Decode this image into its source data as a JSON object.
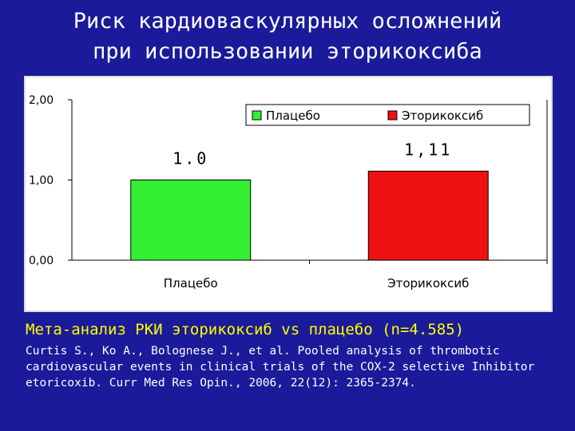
{
  "slide": {
    "title_line1": "Риск кардиоваскулярных осложнений",
    "title_line2": "при использовании эторикоксиба",
    "meta_analysis": "Мета-анализ РКИ эторикоксиб  vs плацебо (n=4.585)",
    "citation_line1": "Curtis S., Ko A., Bolognese J., et al. Pooled analysis of thrombotic",
    "citation_line2": "cardiovascular events in clinical trials of the COX-2 selective Inhibitor",
    "citation_line3": "etoricoxib. Curr Med Res Opin., 2006, 22(12): 2365-2374."
  },
  "colors": {
    "background": "#1a1a9a",
    "placebo": "#33ee33",
    "etoricoxib": "#ee1111"
  },
  "chart_data": {
    "type": "bar",
    "categories": [
      "Плацебо",
      "Эторикоксиб"
    ],
    "values": [
      1.0,
      1.11
    ],
    "data_labels": [
      "1.0",
      "1,11"
    ],
    "colors": [
      "#33ee33",
      "#ee1111"
    ],
    "yticks": [
      "0,00",
      "1,00",
      "2,00"
    ],
    "ytick_values": [
      0,
      1,
      2
    ],
    "ylim": [
      0,
      2
    ],
    "legend": [
      "Плацебо",
      "Эторикоксиб"
    ],
    "legend_position": "top-right",
    "grid": false,
    "title": "",
    "xlabel": "",
    "ylabel": ""
  }
}
